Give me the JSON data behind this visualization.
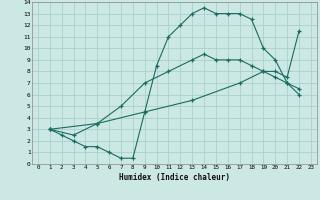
{
  "xlabel": "Humidex (Indice chaleur)",
  "bg_color": "#cce8e4",
  "grid_color": "#aacfca",
  "line_color": "#1a6b60",
  "xlim": [
    -0.5,
    23.5
  ],
  "ylim": [
    0,
    14
  ],
  "xticks": [
    0,
    1,
    2,
    3,
    4,
    5,
    6,
    7,
    8,
    9,
    10,
    11,
    12,
    13,
    14,
    15,
    16,
    17,
    18,
    19,
    20,
    21,
    22,
    23
  ],
  "yticks": [
    0,
    1,
    2,
    3,
    4,
    5,
    6,
    7,
    8,
    9,
    10,
    11,
    12,
    13,
    14
  ],
  "curve1_x": [
    1,
    2,
    3,
    4,
    5,
    6,
    7,
    8,
    9,
    10,
    11,
    12,
    13,
    14,
    15,
    16,
    17,
    18,
    19,
    20,
    21,
    22
  ],
  "curve1_y": [
    3,
    2.5,
    2,
    1.5,
    1.5,
    1,
    0.5,
    0.5,
    4.5,
    8.5,
    11,
    12,
    13,
    13.5,
    13,
    13,
    13,
    12.5,
    10,
    9,
    7,
    6
  ],
  "curve2_x": [
    1,
    3,
    5,
    7,
    9,
    11,
    13,
    14,
    15,
    16,
    17,
    18,
    19,
    20,
    21,
    22
  ],
  "curve2_y": [
    3,
    2.5,
    3.5,
    5,
    7,
    8,
    9,
    9.5,
    9,
    9,
    9,
    8.5,
    8,
    7.5,
    7,
    6.5
  ],
  "curve3_x": [
    1,
    5,
    9,
    13,
    17,
    19,
    20,
    21,
    22
  ],
  "curve3_y": [
    3,
    3.5,
    4.5,
    5.5,
    7,
    8,
    8,
    7.5,
    11.5
  ]
}
